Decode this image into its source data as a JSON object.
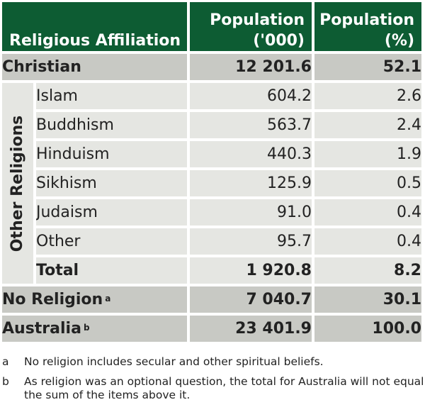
{
  "table": {
    "header": {
      "affiliation": "Religious Affiliation",
      "population_thousands": "Population ('000)",
      "population_percent": "Population (%)"
    },
    "christian": {
      "label": "Christian",
      "thousands": "12 201.6",
      "percent": "52.1"
    },
    "other_religions": {
      "group_label": "Other Religions",
      "rows": [
        {
          "label": "Islam",
          "thousands": "604.2",
          "percent": "2.6"
        },
        {
          "label": "Buddhism",
          "thousands": "563.7",
          "percent": "2.4"
        },
        {
          "label": "Hinduism",
          "thousands": "440.3",
          "percent": "1.9"
        },
        {
          "label": "Sikhism",
          "thousands": "125.9",
          "percent": "0.5"
        },
        {
          "label": "Judaism",
          "thousands": "91.0",
          "percent": "0.4"
        },
        {
          "label": "Other",
          "thousands": "95.7",
          "percent": "0.4"
        }
      ],
      "total": {
        "label": "Total",
        "thousands": "1 920.8",
        "percent": "8.2"
      }
    },
    "no_religion": {
      "label": "No Religion",
      "footnote": "a",
      "thousands": "7 040.7",
      "percent": "30.1"
    },
    "australia": {
      "label": "Australia",
      "footnote": "b",
      "thousands": "23 401.9",
      "percent": "100.0"
    }
  },
  "notes": [
    {
      "mark": "a",
      "text": "No religion includes secular and other spiritual beliefs."
    },
    {
      "mark": "b",
      "text": "As religion was an optional question, the total for Australia will not equal the sum of the items above it."
    }
  ],
  "colors": {
    "header_bg": "#0d5c33",
    "dark_row": "#c8c9c4",
    "light_row": "#e5e6e2"
  }
}
